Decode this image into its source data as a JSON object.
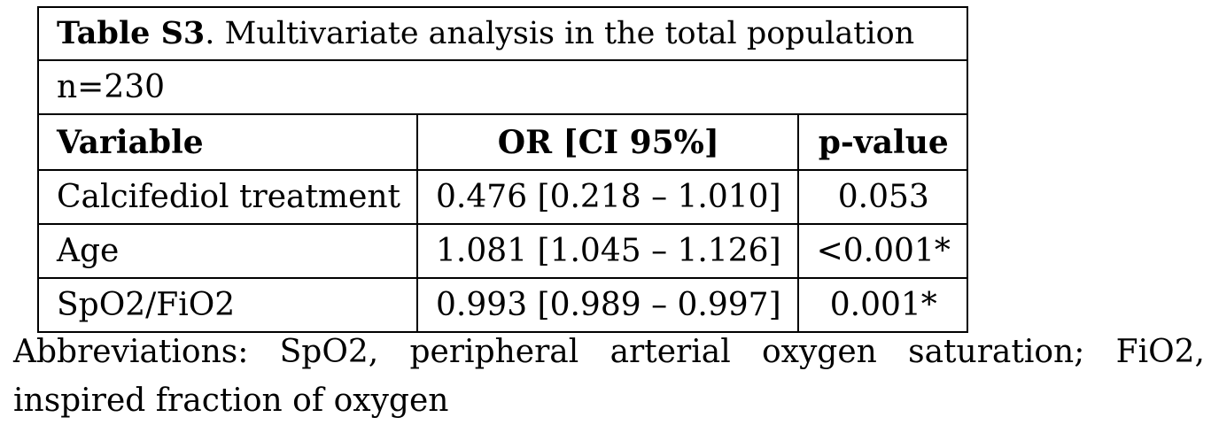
{
  "table": {
    "caption_label": "Table S3",
    "caption_text": ". Multivariate analysis in the total population",
    "sample_size": "n=230",
    "headers": [
      "Variable",
      "OR [CI 95%]",
      "p-value"
    ],
    "rows": [
      {
        "variable": "Calcifediol treatment",
        "or_ci": "0.476 [0.218 – 1.010]",
        "p_value": "0.053",
        "significant": false
      },
      {
        "variable": "Age",
        "or_ci": "1.081 [1.045 – 1.126]",
        "p_value": "<0.001*",
        "significant": true
      },
      {
        "variable": "SpO2/FiO2",
        "or_ci": "0.993 [0.989 – 0.997]",
        "p_value": "0.001*",
        "significant": true
      }
    ]
  },
  "footnote": "Abbreviations: SpO2, peripheral arterial oxygen saturation; FiO2, inspired fraction of oxygen"
}
